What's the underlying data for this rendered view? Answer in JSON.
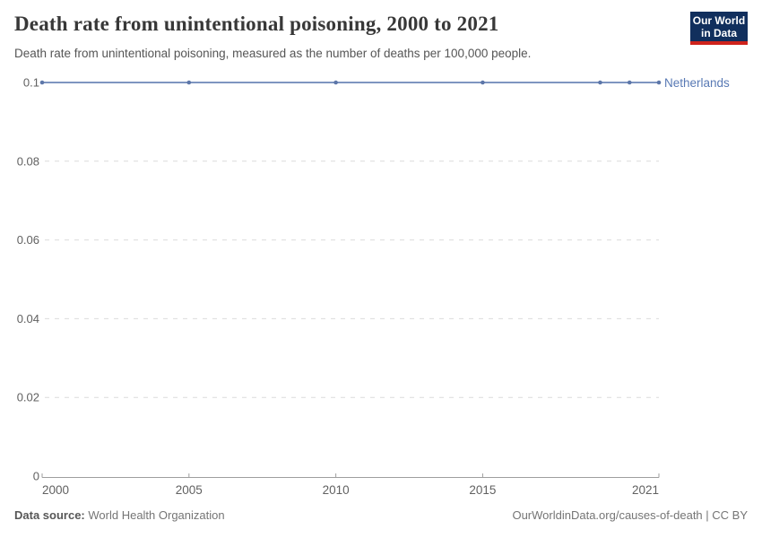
{
  "header": {
    "title": "Death rate from unintentional poisoning, 2000 to 2021",
    "subtitle": "Death rate from unintentional poisoning, measured as the number of deaths per 100,000 people.",
    "logo": {
      "line1": "Our World",
      "line2": "in Data"
    }
  },
  "chart_data": {
    "type": "line",
    "title": "Death rate from unintentional poisoning, 2000 to 2021",
    "x": [
      2000,
      2005,
      2010,
      2015,
      2019,
      2020,
      2021
    ],
    "series": [
      {
        "name": "Netherlands",
        "values": [
          0.1,
          0.1,
          0.1,
          0.1,
          0.1,
          0.1,
          0.1
        ],
        "line_color": "#7e95c0",
        "marker_color": "#5d77a9",
        "label_color": "#5879b4"
      }
    ],
    "xlabel": "",
    "ylabel": "",
    "xlim": [
      2000,
      2021
    ],
    "ylim": [
      0,
      0.1
    ],
    "x_ticks": [
      {
        "value": 2000,
        "label": "2000"
      },
      {
        "value": 2005,
        "label": "2005"
      },
      {
        "value": 2010,
        "label": "2010"
      },
      {
        "value": 2015,
        "label": "2015"
      },
      {
        "value": 2021,
        "label": "2021"
      }
    ],
    "y_ticks": [
      {
        "value": 0,
        "label": "0"
      },
      {
        "value": 0.02,
        "label": "0.02"
      },
      {
        "value": 0.04,
        "label": "0.04"
      },
      {
        "value": 0.06,
        "label": "0.06"
      },
      {
        "value": 0.08,
        "label": "0.08"
      },
      {
        "value": 0.1,
        "label": "0.1"
      }
    ],
    "grid": "horizontal-dashed",
    "legend_position": "right-of-line-end"
  },
  "colors": {
    "gridline": "#dcdcdc",
    "axis": "#9e9e9e",
    "tick_label": "#616161",
    "title": "#383838",
    "subtitle": "#555555",
    "footer": "#757575",
    "logo_bg": "#112f5d",
    "logo_red": "#cf231c"
  },
  "footer": {
    "source_label": "Data source:",
    "source_value": "World Health Organization",
    "credit": "OurWorldinData.org/causes-of-death | CC BY"
  }
}
